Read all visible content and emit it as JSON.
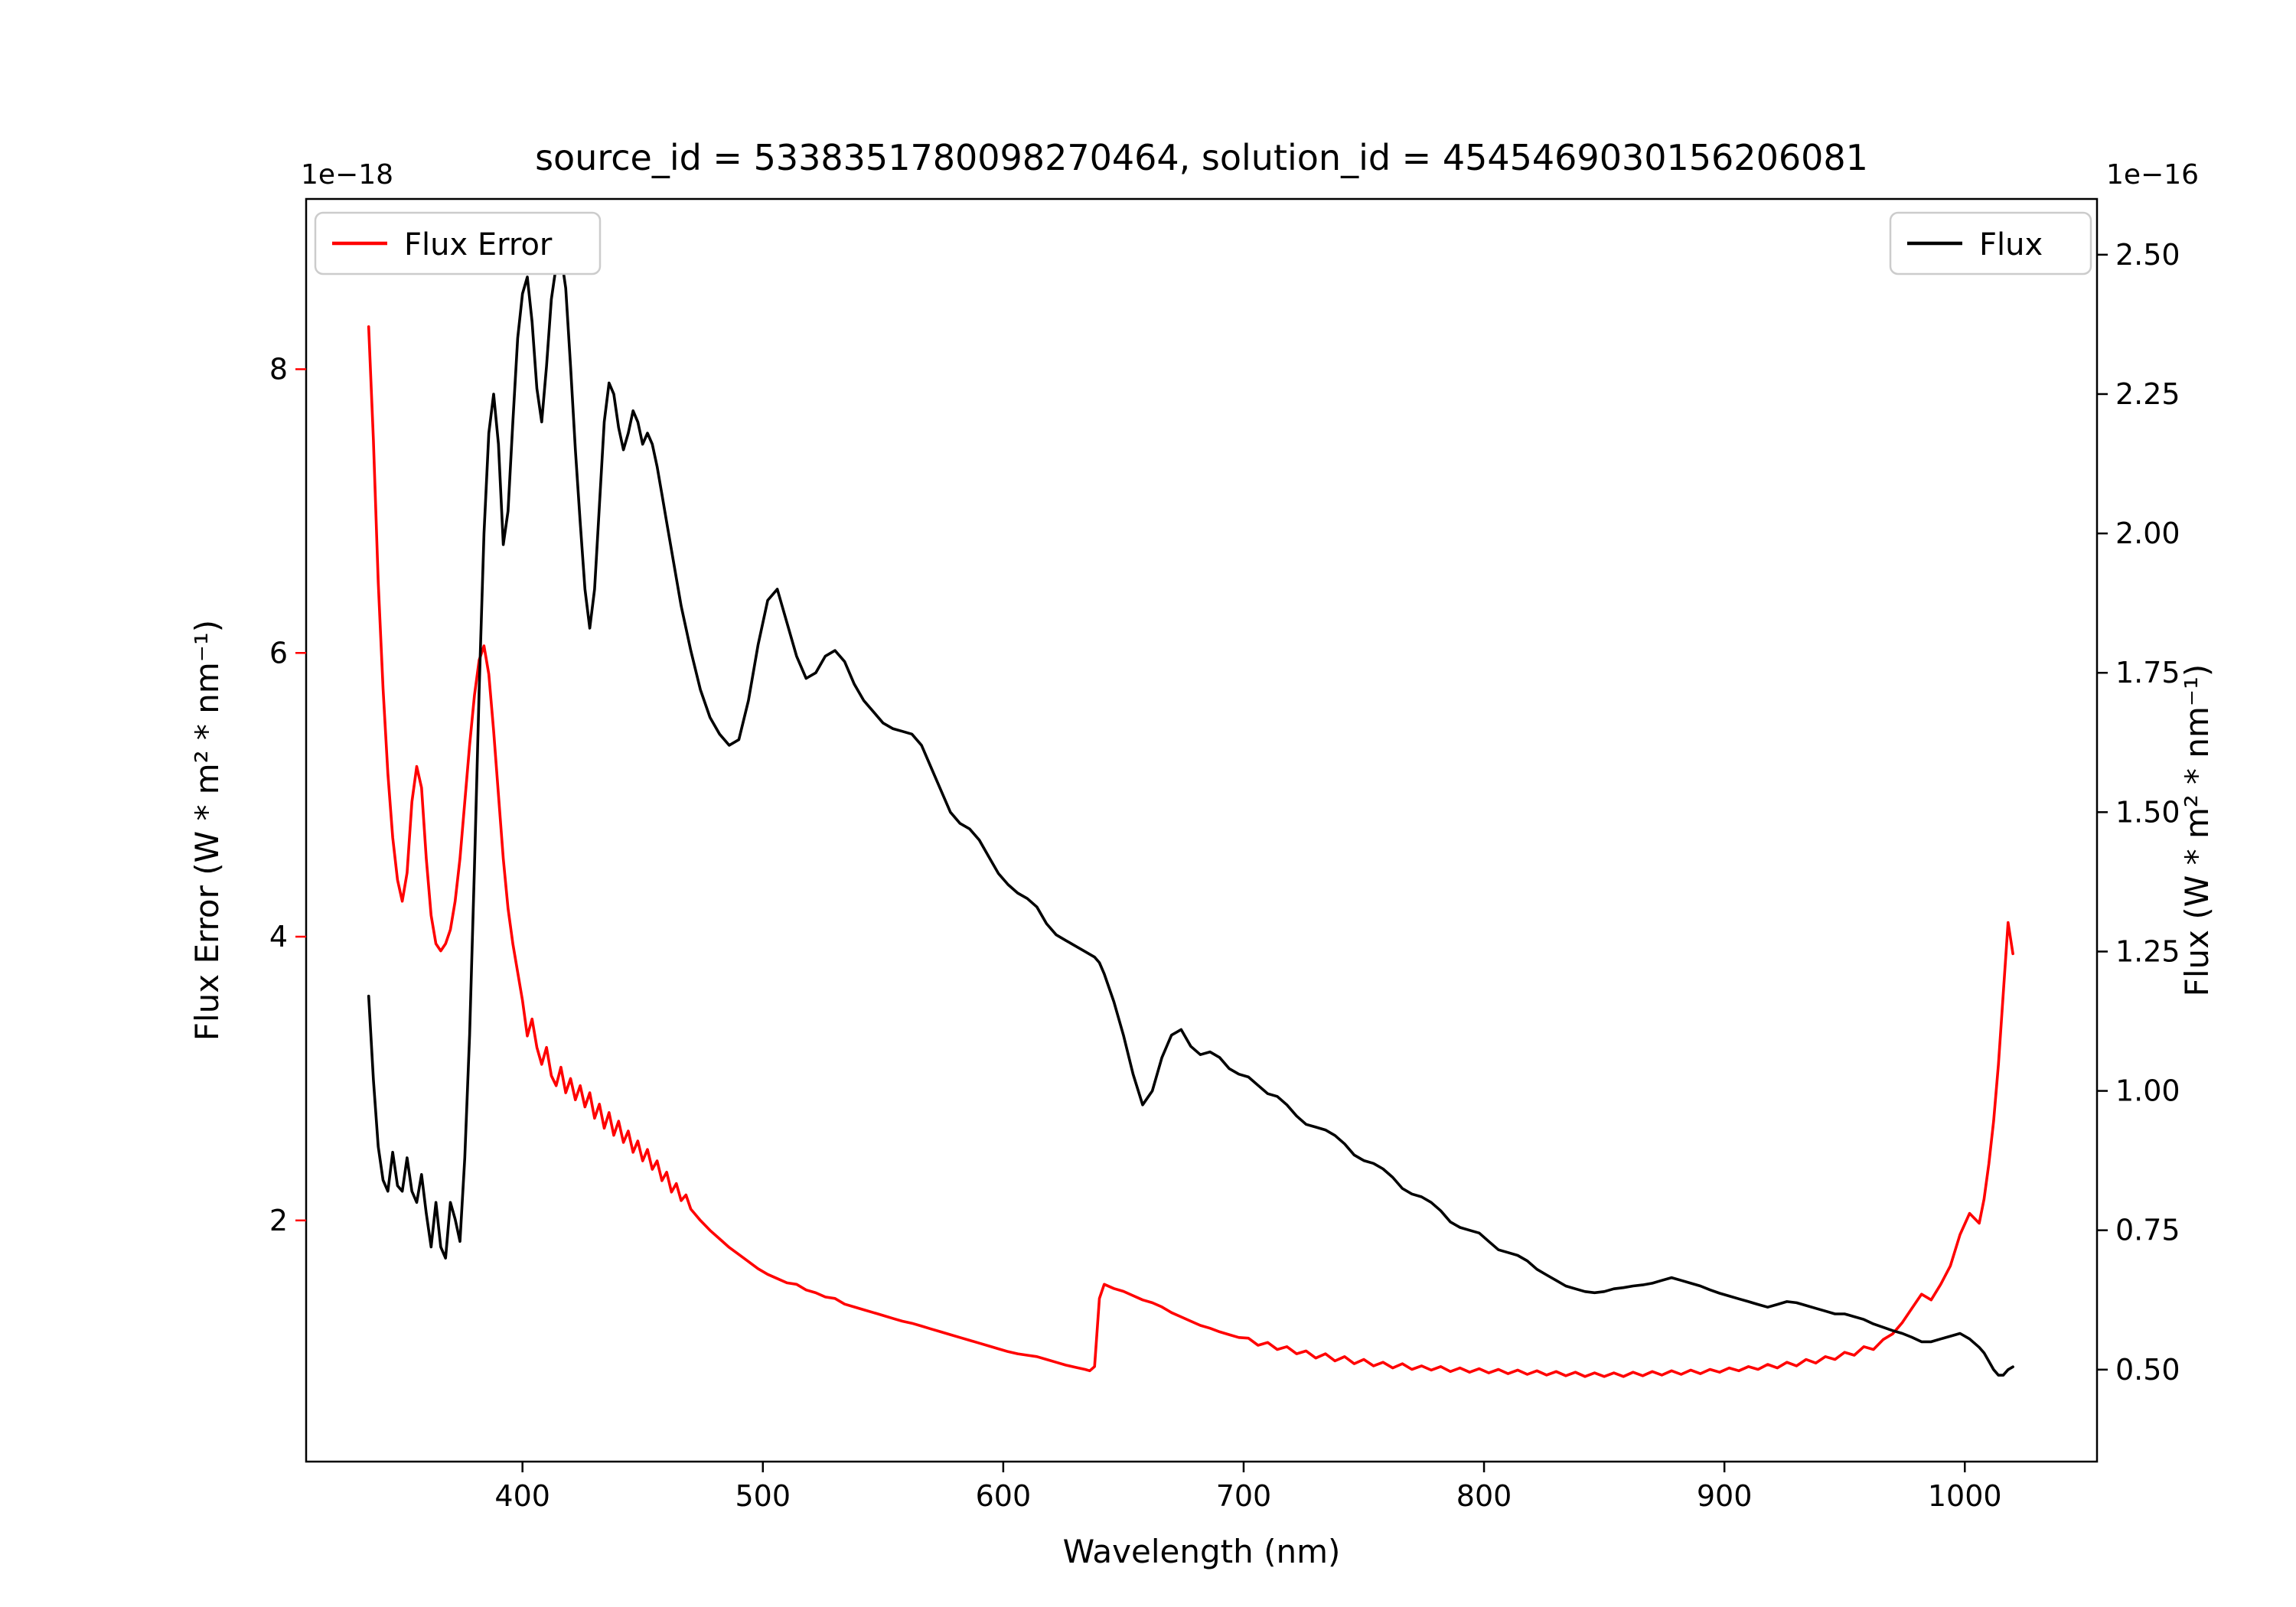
{
  "title": "source_id = 5338351780098270464, solution_id = 4545469030156206081",
  "offset_text": {
    "left": "1e−18",
    "right": "1e−16"
  },
  "axis_labels": {
    "x": "Wavelength (nm)",
    "y_left": "Flux Error (W * m² * nm⁻¹)",
    "y_right": "Flux (W * m² * nm⁻¹)"
  },
  "legend": {
    "flux_error_label": "Flux Error",
    "flux_label": "Flux"
  },
  "colors": {
    "flux_error": "#ff0000",
    "flux": "#000000",
    "legend_frame": "#cccccc"
  },
  "chart_data": {
    "type": "line",
    "title": "source_id = 5338351780098270464, solution_id = 4545469030156206081",
    "xlabel": "Wavelength (nm)",
    "grid": false,
    "legend_positions": {
      "flux_error": "upper left",
      "flux": "upper right"
    },
    "x_axis": {
      "min": 310,
      "max": 1055,
      "ticks": [
        400,
        500,
        600,
        700,
        800,
        900,
        1000
      ],
      "tick_labels": [
        "400",
        "500",
        "600",
        "700",
        "800",
        "900",
        "1000"
      ]
    },
    "y_left_axis": {
      "label": "Flux Error (W * m² * nm⁻¹)",
      "unit_scale": "1e-18",
      "color": "#ff0000",
      "min": 0.3,
      "max": 9.2,
      "ticks": [
        2,
        4,
        6,
        8
      ],
      "tick_labels": [
        "2",
        "4",
        "6",
        "8"
      ]
    },
    "y_right_axis": {
      "label": "Flux (W * m² * nm⁻¹)",
      "unit_scale": "1e-16",
      "color": "#000000",
      "min": 0.335,
      "max": 2.6,
      "ticks": [
        0.5,
        0.75,
        1.0,
        1.25,
        1.5,
        1.75,
        2.0,
        2.25,
        2.5
      ],
      "tick_labels": [
        "0.50",
        "0.75",
        "1.00",
        "1.25",
        "1.50",
        "1.75",
        "2.00",
        "2.25",
        "2.50"
      ]
    },
    "x": [
      336,
      338,
      340,
      342,
      344,
      346,
      348,
      350,
      352,
      354,
      356,
      358,
      360,
      362,
      364,
      366,
      368,
      370,
      372,
      374,
      376,
      378,
      380,
      382,
      384,
      386,
      388,
      390,
      392,
      394,
      396,
      398,
      400,
      402,
      404,
      406,
      408,
      410,
      412,
      414,
      416,
      418,
      420,
      422,
      424,
      426,
      428,
      430,
      432,
      434,
      436,
      438,
      440,
      442,
      444,
      446,
      448,
      450,
      452,
      454,
      456,
      458,
      460,
      462,
      464,
      466,
      468,
      470,
      474,
      478,
      482,
      486,
      490,
      494,
      498,
      502,
      506,
      510,
      514,
      518,
      522,
      526,
      530,
      534,
      538,
      542,
      546,
      550,
      554,
      558,
      562,
      566,
      570,
      574,
      578,
      582,
      586,
      590,
      594,
      598,
      602,
      606,
      610,
      614,
      618,
      622,
      626,
      630,
      634,
      636,
      638,
      640,
      642,
      646,
      650,
      654,
      658,
      662,
      666,
      670,
      674,
      678,
      682,
      686,
      690,
      694,
      698,
      702,
      706,
      710,
      714,
      718,
      722,
      726,
      730,
      734,
      738,
      742,
      746,
      750,
      754,
      758,
      762,
      766,
      770,
      774,
      778,
      782,
      786,
      790,
      794,
      798,
      802,
      806,
      810,
      814,
      818,
      822,
      826,
      830,
      834,
      838,
      842,
      846,
      850,
      854,
      858,
      862,
      866,
      870,
      874,
      878,
      882,
      886,
      890,
      894,
      898,
      902,
      906,
      910,
      914,
      918,
      922,
      926,
      930,
      934,
      938,
      942,
      946,
      950,
      954,
      958,
      962,
      966,
      970,
      974,
      978,
      982,
      986,
      990,
      994,
      998,
      1002,
      1006,
      1008,
      1010,
      1012,
      1014,
      1016,
      1018,
      1020
    ],
    "series": [
      {
        "name": "Flux Error",
        "axis": "left",
        "color": "#ff0000",
        "unit_scale": "1e-18",
        "values": [
          8.3,
          7.5,
          6.5,
          5.75,
          5.15,
          4.7,
          4.4,
          4.25,
          4.45,
          4.95,
          5.2,
          5.05,
          4.55,
          4.15,
          3.95,
          3.9,
          3.95,
          4.05,
          4.25,
          4.55,
          4.95,
          5.35,
          5.7,
          5.95,
          6.05,
          5.85,
          5.45,
          5.0,
          4.55,
          4.2,
          3.95,
          3.75,
          3.55,
          3.3,
          3.42,
          3.22,
          3.1,
          3.22,
          3.02,
          2.95,
          3.08,
          2.9,
          3.0,
          2.85,
          2.95,
          2.8,
          2.9,
          2.72,
          2.82,
          2.65,
          2.76,
          2.6,
          2.7,
          2.55,
          2.63,
          2.48,
          2.56,
          2.42,
          2.5,
          2.36,
          2.42,
          2.28,
          2.34,
          2.2,
          2.26,
          2.14,
          2.18,
          2.08,
          2.0,
          1.93,
          1.87,
          1.81,
          1.76,
          1.71,
          1.66,
          1.62,
          1.59,
          1.56,
          1.55,
          1.51,
          1.49,
          1.46,
          1.45,
          1.41,
          1.39,
          1.37,
          1.35,
          1.33,
          1.31,
          1.29,
          1.275,
          1.255,
          1.235,
          1.215,
          1.195,
          1.175,
          1.155,
          1.135,
          1.115,
          1.095,
          1.075,
          1.06,
          1.05,
          1.04,
          1.02,
          1.0,
          0.98,
          0.965,
          0.95,
          0.94,
          0.97,
          1.45,
          1.55,
          1.52,
          1.5,
          1.47,
          1.44,
          1.42,
          1.39,
          1.35,
          1.32,
          1.29,
          1.26,
          1.24,
          1.215,
          1.195,
          1.175,
          1.17,
          1.12,
          1.14,
          1.09,
          1.11,
          1.06,
          1.08,
          1.03,
          1.06,
          1.01,
          1.04,
          0.99,
          1.02,
          0.975,
          1.0,
          0.96,
          0.99,
          0.95,
          0.975,
          0.945,
          0.97,
          0.935,
          0.96,
          0.93,
          0.955,
          0.925,
          0.95,
          0.92,
          0.945,
          0.915,
          0.94,
          0.91,
          0.935,
          0.905,
          0.93,
          0.9,
          0.925,
          0.9,
          0.925,
          0.9,
          0.93,
          0.905,
          0.935,
          0.91,
          0.94,
          0.915,
          0.945,
          0.92,
          0.95,
          0.93,
          0.96,
          0.94,
          0.97,
          0.95,
          0.985,
          0.96,
          1.0,
          0.975,
          1.02,
          0.995,
          1.04,
          1.02,
          1.07,
          1.05,
          1.11,
          1.09,
          1.16,
          1.2,
          1.28,
          1.38,
          1.48,
          1.44,
          1.55,
          1.68,
          1.9,
          2.05,
          1.98,
          2.15,
          2.4,
          2.7,
          3.1,
          3.6,
          4.1,
          3.88
        ]
      },
      {
        "name": "Flux",
        "axis": "right",
        "color": "#000000",
        "unit_scale": "1e-16",
        "values": [
          1.17,
          1.02,
          0.9,
          0.84,
          0.82,
          0.89,
          0.83,
          0.82,
          0.88,
          0.82,
          0.8,
          0.85,
          0.78,
          0.72,
          0.8,
          0.72,
          0.7,
          0.8,
          0.77,
          0.73,
          0.88,
          1.1,
          1.4,
          1.72,
          2.0,
          2.18,
          2.25,
          2.16,
          1.98,
          2.04,
          2.2,
          2.35,
          2.43,
          2.46,
          2.38,
          2.26,
          2.2,
          2.3,
          2.42,
          2.48,
          2.5,
          2.44,
          2.3,
          2.15,
          2.02,
          1.9,
          1.83,
          1.9,
          2.05,
          2.2,
          2.27,
          2.25,
          2.19,
          2.15,
          2.18,
          2.22,
          2.2,
          2.16,
          2.18,
          2.16,
          2.12,
          2.07,
          2.02,
          1.97,
          1.92,
          1.87,
          1.83,
          1.79,
          1.72,
          1.67,
          1.64,
          1.62,
          1.63,
          1.7,
          1.8,
          1.88,
          1.9,
          1.84,
          1.78,
          1.74,
          1.75,
          1.78,
          1.79,
          1.77,
          1.73,
          1.7,
          1.68,
          1.66,
          1.65,
          1.645,
          1.64,
          1.62,
          1.58,
          1.54,
          1.5,
          1.48,
          1.47,
          1.45,
          1.42,
          1.39,
          1.37,
          1.355,
          1.345,
          1.33,
          1.3,
          1.28,
          1.27,
          1.26,
          1.25,
          1.245,
          1.24,
          1.23,
          1.21,
          1.16,
          1.1,
          1.03,
          0.975,
          1.0,
          1.06,
          1.1,
          1.11,
          1.08,
          1.065,
          1.07,
          1.06,
          1.04,
          1.03,
          1.025,
          1.01,
          0.995,
          0.99,
          0.975,
          0.955,
          0.94,
          0.935,
          0.93,
          0.92,
          0.905,
          0.885,
          0.875,
          0.87,
          0.86,
          0.845,
          0.825,
          0.815,
          0.81,
          0.8,
          0.785,
          0.765,
          0.755,
          0.75,
          0.745,
          0.73,
          0.715,
          0.71,
          0.705,
          0.695,
          0.68,
          0.67,
          0.66,
          0.65,
          0.645,
          0.64,
          0.638,
          0.64,
          0.645,
          0.647,
          0.65,
          0.652,
          0.655,
          0.66,
          0.665,
          0.66,
          0.655,
          0.65,
          0.643,
          0.637,
          0.632,
          0.627,
          0.622,
          0.617,
          0.612,
          0.617,
          0.622,
          0.62,
          0.615,
          0.61,
          0.605,
          0.6,
          0.6,
          0.595,
          0.59,
          0.582,
          0.576,
          0.57,
          0.565,
          0.558,
          0.55,
          0.55,
          0.555,
          0.56,
          0.565,
          0.555,
          0.54,
          0.53,
          0.515,
          0.5,
          0.49,
          0.49,
          0.5,
          0.505
        ]
      }
    ]
  }
}
